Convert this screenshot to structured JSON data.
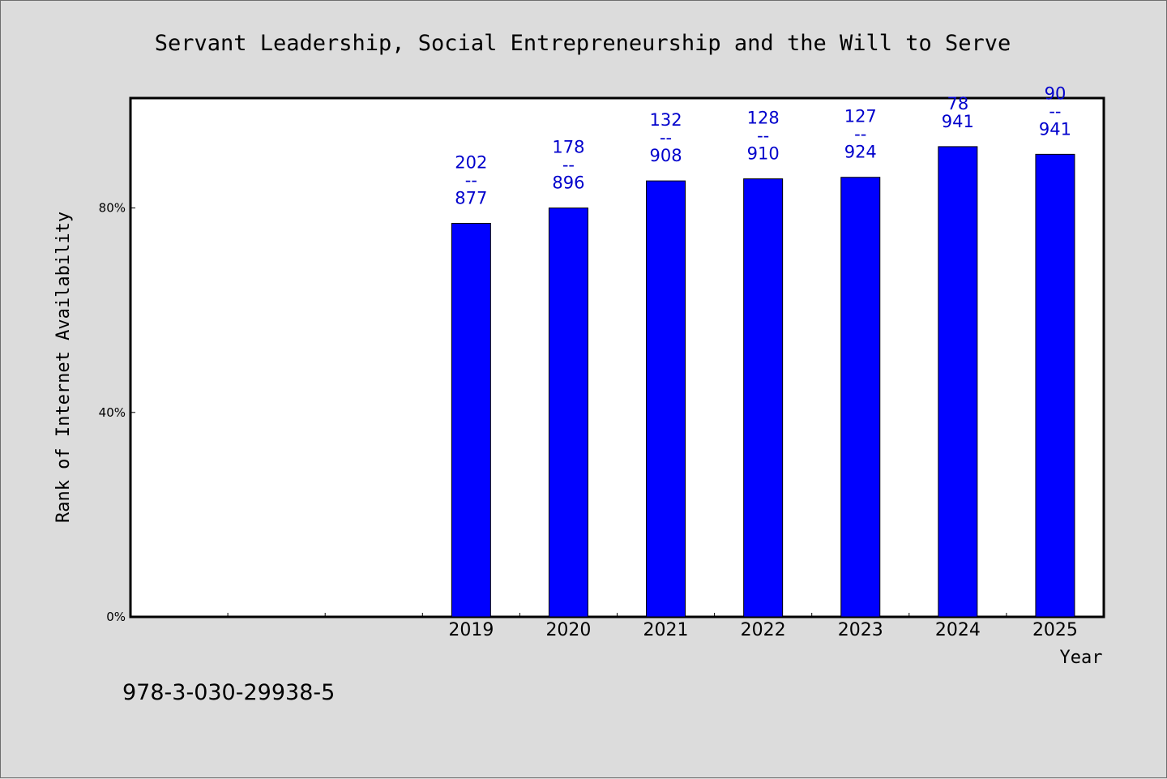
{
  "chart_data": {
    "type": "bar",
    "title": "Servant Leadership, Social Entrepreneurship and the Will to Serve",
    "xlabel": "Year",
    "ylabel": "Rank of Internet Availability",
    "categories": [
      "",
      "",
      "",
      "2019",
      "2020",
      "2021",
      "2022",
      "2023",
      "2024",
      "2025"
    ],
    "values": [
      null,
      null,
      null,
      77,
      80,
      85.3,
      85.7,
      86,
      92,
      90.5
    ],
    "ylim": [
      0,
      101.5
    ],
    "yticks": [
      0,
      40,
      80
    ],
    "ytick_labels": [
      "0%",
      "40%",
      "80%"
    ],
    "data_labels": [
      null,
      null,
      null,
      [
        "202",
        "--",
        "877"
      ],
      [
        "178",
        "--",
        "896"
      ],
      [
        "132",
        "--",
        "908"
      ],
      [
        "128",
        "--",
        "910"
      ],
      [
        "127",
        "--",
        "924"
      ],
      [
        "78",
        "941"
      ],
      [
        "90",
        "--",
        "941"
      ]
    ],
    "grid": false,
    "legend": "none",
    "colors": {
      "bar": "#0000ff",
      "data_label": "#0000cc",
      "plot_bg": "#ffffff",
      "page_bg": "#dcdcdc"
    }
  },
  "footer": {
    "isbn": "978-3-030-29938-5"
  }
}
